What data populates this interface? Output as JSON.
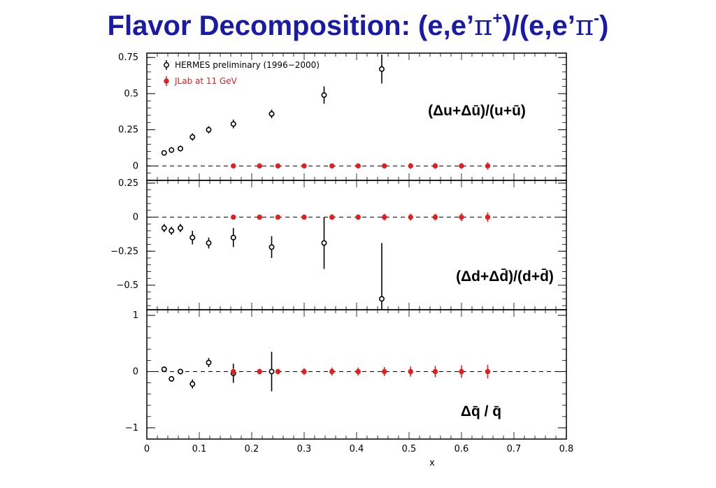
{
  "title": {
    "prefix": "Flavor Decomposition: (e,e’",
    "pi1": "π",
    "sup1": "+",
    "mid": ")/(e,e’",
    "pi2": "π",
    "sup2": "-",
    "suffix": ")"
  },
  "colors": {
    "title": "#1a1aa8",
    "hermes": "#000000",
    "jlab": "#e02020"
  },
  "chart_data": {
    "type": "scatter",
    "xlabel": "x",
    "xlim": [
      0,
      0.8
    ],
    "xticks": [
      "0",
      "0.1",
      "0.2",
      "0.3",
      "0.4",
      "0.5",
      "0.6",
      "0.7",
      "0.8"
    ],
    "legend": {
      "placement": "top-left",
      "entries": [
        "HERMES preliminary (1996−2000)",
        "JLab at 11 GeV"
      ]
    },
    "panels": [
      {
        "label": "(Δu+Δū)/(u+ū)",
        "ylim": [
          -0.1,
          0.78
        ],
        "yticks": [
          0,
          0.25,
          0.5,
          0.75
        ],
        "ytick_labels": [
          "0",
          "0.25",
          "0.5",
          "0.75"
        ],
        "zero_line": true,
        "series": [
          {
            "name": "HERMES preliminary (1996−2000)",
            "x": [
              0.033,
              0.047,
              0.064,
              0.087,
              0.118,
              0.165,
              0.238,
              0.338,
              0.448
            ],
            "y": [
              0.09,
              0.11,
              0.12,
              0.2,
              0.25,
              0.29,
              0.36,
              0.49,
              0.67
            ],
            "err": [
              0.01,
              0.02,
              0.02,
              0.025,
              0.025,
              0.03,
              0.03,
              0.06,
              0.1
            ]
          },
          {
            "name": "JLab at 11 GeV",
            "x": [
              0.165,
              0.215,
              0.25,
              0.3,
              0.353,
              0.403,
              0.453,
              0.503,
              0.55,
              0.6,
              0.65
            ],
            "y": [
              0,
              0,
              0,
              0,
              0,
              0,
              0,
              0,
              0,
              0,
              0
            ],
            "err": [
              0.015,
              0.015,
              0.015,
              0.015,
              0.015,
              0.015,
              0.015,
              0.02,
              0.02,
              0.02,
              0.025
            ]
          }
        ]
      },
      {
        "label": "(Δd+Δd̄)/(d+d̄)",
        "ylim": [
          -0.68,
          0.27
        ],
        "yticks": [
          -0.5,
          -0.25,
          0,
          0.25
        ],
        "ytick_labels": [
          "−0.5",
          "−0.25",
          "0",
          "0.25"
        ],
        "zero_line": true,
        "series": [
          {
            "name": "HERMES preliminary (1996−2000)",
            "x": [
              0.033,
              0.047,
              0.064,
              0.087,
              0.118,
              0.165,
              0.238,
              0.338,
              0.448
            ],
            "y": [
              -0.08,
              -0.1,
              -0.08,
              -0.15,
              -0.19,
              -0.15,
              -0.22,
              -0.19,
              -0.6
            ],
            "err": [
              0.03,
              0.03,
              0.03,
              0.05,
              0.04,
              0.07,
              0.08,
              0.19,
              0.41
            ]
          },
          {
            "name": "JLab at 11 GeV",
            "x": [
              0.165,
              0.215,
              0.25,
              0.3,
              0.353,
              0.403,
              0.453,
              0.503,
              0.55,
              0.6,
              0.65
            ],
            "y": [
              0,
              0,
              0,
              0,
              0,
              0,
              0,
              0,
              0,
              0,
              0
            ],
            "err": [
              0.015,
              0.015,
              0.015,
              0.015,
              0.02,
              0.02,
              0.025,
              0.025,
              0.025,
              0.03,
              0.035
            ]
          }
        ]
      },
      {
        "label": "Δq̄ / q̄",
        "ylim": [
          -1.2,
          1.1
        ],
        "yticks": [
          -1,
          0,
          1
        ],
        "ytick_labels": [
          "−1",
          "0",
          "1"
        ],
        "zero_line": true,
        "series": [
          {
            "name": "HERMES preliminary (1996−2000)",
            "x": [
              0.033,
              0.047,
              0.064,
              0.087,
              0.118,
              0.165,
              0.238
            ],
            "y": [
              0.04,
              -0.13,
              0.0,
              -0.22,
              0.16,
              -0.03,
              0.0
            ],
            "err": [
              0.05,
              0.05,
              0.05,
              0.08,
              0.08,
              0.17,
              0.35
            ]
          },
          {
            "name": "JLab at 11 GeV",
            "x": [
              0.165,
              0.215,
              0.25,
              0.3,
              0.353,
              0.403,
              0.453,
              0.503,
              0.55,
              0.6,
              0.65
            ],
            "y": [
              0,
              0,
              0,
              0,
              0,
              0,
              0,
              0,
              0,
              0,
              0
            ],
            "err": [
              0.06,
              0.05,
              0.05,
              0.06,
              0.07,
              0.07,
              0.08,
              0.09,
              0.1,
              0.11,
              0.12
            ]
          }
        ]
      }
    ]
  }
}
